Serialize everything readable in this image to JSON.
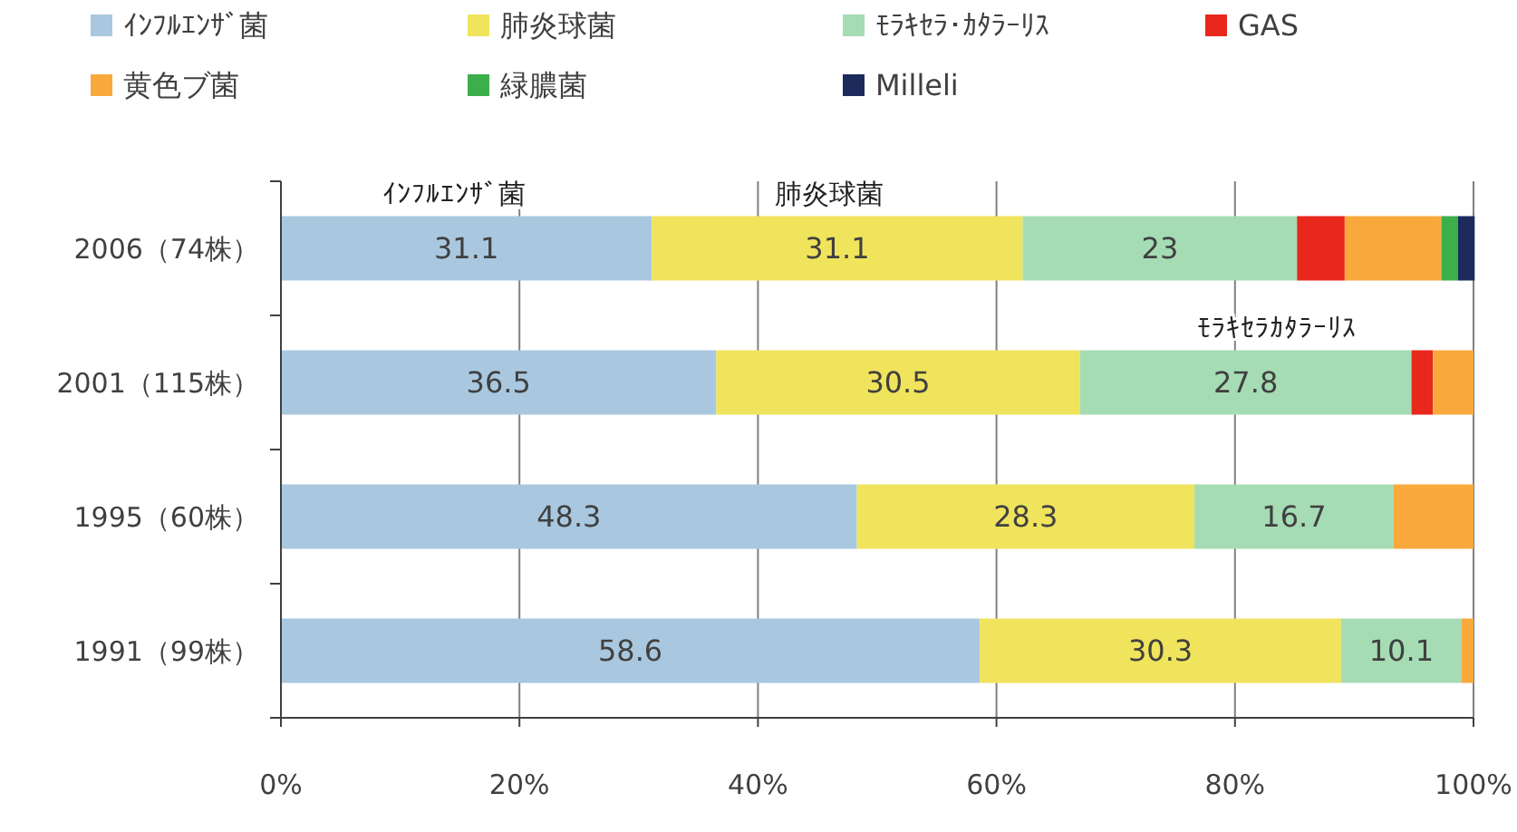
{
  "chart_data": {
    "type": "bar",
    "orientation": "horizontal",
    "stacked": true,
    "categories": [
      "2006（74株）",
      "2001（115株）",
      "1995（60株）",
      "1991（99株）"
    ],
    "series": [
      {
        "name": "ｲﾝﾌﾙｴﾝｻﾞ菌",
        "color": "#a9c8e0",
        "values": [
          31.1,
          36.5,
          48.3,
          58.6
        ],
        "value_labels": [
          "31.1",
          "36.5",
          "48.3",
          "58.6"
        ]
      },
      {
        "name": "肺炎球菌",
        "color": "#f0e45c",
        "values": [
          31.1,
          30.5,
          28.3,
          30.3
        ],
        "value_labels": [
          "31.1",
          "30.5",
          "28.3",
          "30.3"
        ]
      },
      {
        "name": "ﾓﾗｷｾﾗ･ｶﾀﾗｰﾘｽ",
        "color": "#a5dcb4",
        "values": [
          23,
          27.8,
          16.7,
          10.1
        ],
        "value_labels": [
          "23",
          "27.8",
          "16.7",
          "10.1"
        ]
      },
      {
        "name": "GAS",
        "color": "#e8281c",
        "values": [
          4.0,
          1.8,
          null,
          null
        ]
      },
      {
        "name": "黄色ブ菌",
        "color": "#f9a93c",
        "values": [
          8.1,
          3.4,
          6.7,
          1.0
        ]
      },
      {
        "name": "緑膿菌",
        "color": "#3cae4c",
        "values": [
          1.4,
          null,
          null,
          null
        ]
      },
      {
        "name": "Milleli",
        "color": "#1c2a5c",
        "values": [
          1.4,
          null,
          null,
          null
        ]
      }
    ],
    "xlim": [
      0,
      100
    ],
    "xticks": [
      {
        "value": 0,
        "label": "0%"
      },
      {
        "value": 20,
        "label": "20%"
      },
      {
        "value": 40,
        "label": "40%"
      },
      {
        "value": 60,
        "label": "60%"
      },
      {
        "value": 80,
        "label": "80%"
      },
      {
        "value": 100,
        "label": "100%"
      }
    ],
    "grid": "x",
    "legend": "top",
    "annotations": [
      "ｲﾝﾌﾙｴﾝｻﾞ菌",
      "肺炎球菌",
      "ﾓﾗｷｾﾗｶﾀﾗｰﾘｽ"
    ]
  }
}
